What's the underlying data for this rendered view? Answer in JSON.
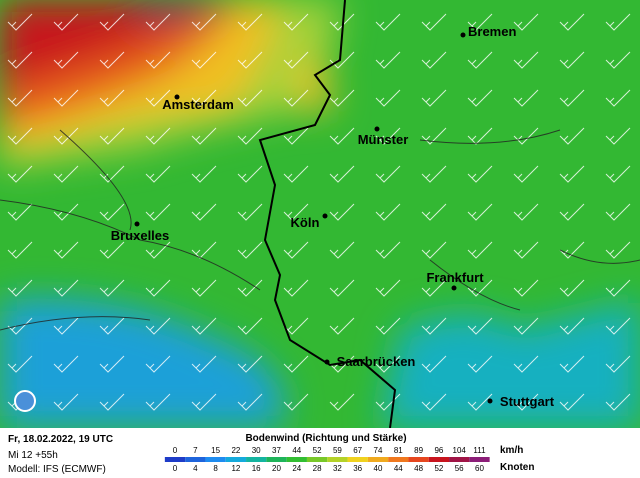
{
  "cities": [
    {
      "label": "Bremen"
    },
    {
      "label": "Amsterdam"
    },
    {
      "label": "Münster"
    },
    {
      "label": "Bruxelles"
    },
    {
      "label": "Köln"
    },
    {
      "label": "Frankfurt"
    },
    {
      "label": "Saarbrücken"
    },
    {
      "label": "Stuttgart"
    }
  ],
  "footer": {
    "date": "Fr, 18.02.2022, 19 UTC",
    "run": "Mi 12 +55h",
    "model": "Modell: IFS (ECMWF)",
    "title": "Bodenwind (Richtung und Stärke)",
    "kmh_unit": "km/h",
    "knots_unit": "Knoten",
    "kmh": [
      0,
      7,
      15,
      22,
      30,
      37,
      44,
      52,
      59,
      67,
      74,
      81,
      89,
      96,
      104,
      111
    ],
    "knots": [
      0,
      4,
      8,
      12,
      16,
      20,
      24,
      28,
      32,
      36,
      40,
      44,
      48,
      52,
      56,
      60
    ]
  }
}
